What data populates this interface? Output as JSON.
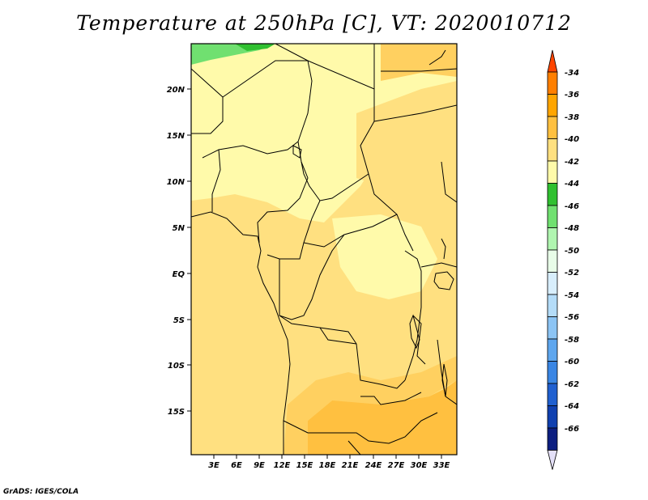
{
  "title": "Temperature at 250hPa [C], VT: 2020010712",
  "credit": "GrADS: IGES/COLA",
  "lat_labels": [
    "20N",
    "15N",
    "10N",
    "5N",
    "EQ",
    "5S",
    "10S",
    "15S"
  ],
  "lon_labels": [
    "3E",
    "6E",
    "9E",
    "12E",
    "15E",
    "18E",
    "21E",
    "24E",
    "27E",
    "30E",
    "33E"
  ],
  "colorbar": {
    "labels": [
      "-34",
      "-36",
      "-38",
      "-40",
      "-42",
      "-44",
      "-46",
      "-48",
      "-50",
      "-52",
      "-54",
      "-56",
      "-58",
      "-60",
      "-62",
      "-64",
      "-66"
    ],
    "colors": [
      "#ff4500",
      "#ff7f00",
      "#ffa500",
      "#ffc040",
      "#ffe080",
      "#fffaaa",
      "#30c030",
      "#70e070",
      "#b0f5b0",
      "#e8fce8",
      "#d8eefc",
      "#b4dcf8",
      "#8cc4f4",
      "#5ea6ee",
      "#3a86e4",
      "#2060d0",
      "#1040b0",
      "#0c1e80",
      "#e4e0f8"
    ]
  },
  "map_colors": {
    "dominant": "#ffe080",
    "north": "#fffaaa",
    "south_warm": "#ffc040",
    "green_patch": "#70e070",
    "land_line": "#000000"
  }
}
